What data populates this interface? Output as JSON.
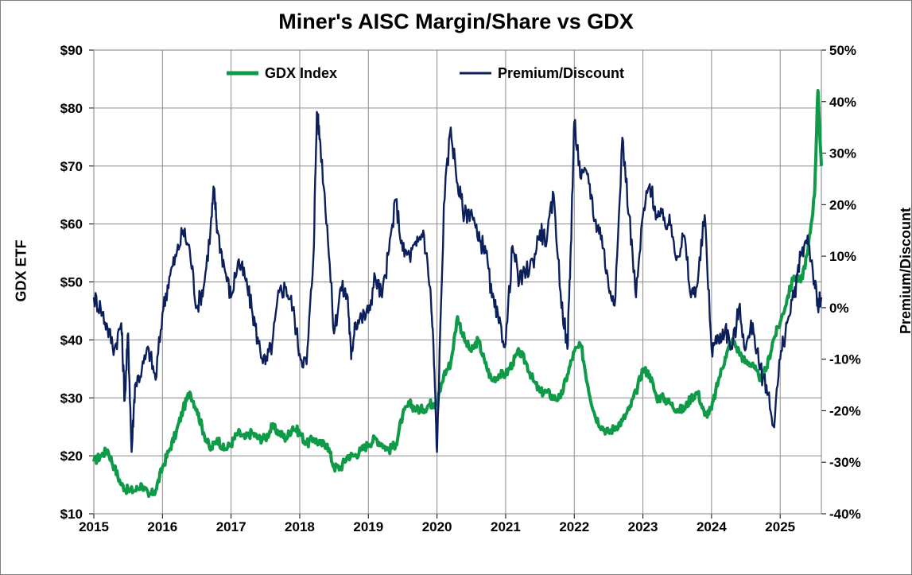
{
  "chart_data": {
    "type": "line",
    "title": "Miner's AISC Margin/Share vs GDX",
    "xlabel": "",
    "ylabel_left": "GDX ETF",
    "ylabel_right": "Premium/Discount",
    "x_ticks": [
      "2015",
      "2016",
      "2017",
      "2018",
      "2019",
      "2020",
      "2021",
      "2022",
      "2023",
      "2024",
      "2025"
    ],
    "y_left_ticks": [
      "$10",
      "$20",
      "$30",
      "$40",
      "$50",
      "$60",
      "$70",
      "$80",
      "$90"
    ],
    "y_right_ticks": [
      "-40%",
      "-30%",
      "-20%",
      "-10%",
      "0%",
      "10%",
      "20%",
      "30%",
      "40%",
      "50%"
    ],
    "xlim": [
      2015.0,
      2025.6
    ],
    "ylim_left": [
      10,
      90
    ],
    "ylim_right": [
      -40,
      50
    ],
    "grid": true,
    "legend_position": "top",
    "series": [
      {
        "name": "GDX Index",
        "axis": "left",
        "color": "#0f9a48",
        "x": [
          2015.0,
          2015.1,
          2015.2,
          2015.3,
          2015.4,
          2015.5,
          2015.6,
          2015.7,
          2015.8,
          2015.9,
          2016.0,
          2016.1,
          2016.2,
          2016.3,
          2016.4,
          2016.5,
          2016.6,
          2016.7,
          2016.8,
          2016.9,
          2017.0,
          2017.1,
          2017.2,
          2017.3,
          2017.4,
          2017.5,
          2017.6,
          2017.7,
          2017.8,
          2017.9,
          2018.0,
          2018.1,
          2018.2,
          2018.3,
          2018.4,
          2018.5,
          2018.6,
          2018.7,
          2018.8,
          2018.9,
          2019.0,
          2019.1,
          2019.2,
          2019.3,
          2019.4,
          2019.5,
          2019.6,
          2019.7,
          2019.8,
          2019.9,
          2019.95,
          2020.0,
          2020.1,
          2020.2,
          2020.3,
          2020.4,
          2020.5,
          2020.6,
          2020.7,
          2020.8,
          2020.9,
          2021.0,
          2021.1,
          2021.2,
          2021.3,
          2021.4,
          2021.5,
          2021.6,
          2021.7,
          2021.8,
          2021.9,
          2022.0,
          2022.1,
          2022.2,
          2022.3,
          2022.4,
          2022.5,
          2022.6,
          2022.7,
          2022.8,
          2022.9,
          2023.0,
          2023.1,
          2023.2,
          2023.3,
          2023.4,
          2023.5,
          2023.6,
          2023.7,
          2023.8,
          2023.9,
          2024.0,
          2024.1,
          2024.2,
          2024.3,
          2024.4,
          2024.5,
          2024.6,
          2024.7,
          2024.8,
          2024.9,
          2025.0,
          2025.1,
          2025.2,
          2025.3,
          2025.4,
          2025.5,
          2025.55,
          2025.6
        ],
        "values": [
          19,
          20,
          21,
          18,
          15,
          14,
          14,
          15,
          13,
          14,
          18,
          21,
          24,
          28,
          31,
          28,
          24,
          21,
          23,
          21,
          22,
          24,
          23,
          24,
          23,
          23,
          25,
          24,
          23,
          25,
          24,
          22,
          23,
          22,
          22,
          18,
          18,
          20,
          20,
          21,
          22,
          23,
          22,
          21,
          22,
          27,
          29,
          28,
          28,
          29,
          29,
          29,
          34,
          36,
          44,
          40,
          38,
          40,
          36,
          33,
          34,
          34,
          36,
          38,
          36,
          33,
          31,
          31,
          30,
          30,
          34,
          38,
          39,
          32,
          27,
          25,
          24,
          25,
          26,
          28,
          31,
          35,
          34,
          30,
          30,
          29,
          28,
          28,
          30,
          31,
          27,
          28,
          33,
          37,
          40,
          38,
          36,
          36,
          33,
          35,
          40,
          43,
          47,
          51,
          50,
          55,
          65,
          83,
          70
        ]
      },
      {
        "name": "Premium/Discount",
        "axis": "right",
        "color": "#0b1f5c",
        "x": [
          2015.0,
          2015.1,
          2015.2,
          2015.3,
          2015.4,
          2015.45,
          2015.5,
          2015.55,
          2015.6,
          2015.7,
          2015.8,
          2015.9,
          2016.0,
          2016.1,
          2016.2,
          2016.3,
          2016.4,
          2016.5,
          2016.6,
          2016.7,
          2016.75,
          2016.8,
          2016.9,
          2017.0,
          2017.1,
          2017.2,
          2017.3,
          2017.4,
          2017.5,
          2017.6,
          2017.7,
          2017.8,
          2017.9,
          2018.0,
          2018.1,
          2018.2,
          2018.25,
          2018.3,
          2018.4,
          2018.5,
          2018.6,
          2018.7,
          2018.75,
          2018.8,
          2018.9,
          2019.0,
          2019.1,
          2019.2,
          2019.3,
          2019.4,
          2019.5,
          2019.6,
          2019.7,
          2019.8,
          2019.9,
          2019.95,
          2020.0,
          2020.1,
          2020.2,
          2020.3,
          2020.4,
          2020.5,
          2020.6,
          2020.7,
          2020.8,
          2020.9,
          2021.0,
          2021.1,
          2021.2,
          2021.3,
          2021.4,
          2021.5,
          2021.6,
          2021.7,
          2021.8,
          2021.9,
          2021.95,
          2022.0,
          2022.1,
          2022.2,
          2022.3,
          2022.4,
          2022.5,
          2022.6,
          2022.7,
          2022.8,
          2022.9,
          2023.0,
          2023.1,
          2023.2,
          2023.3,
          2023.4,
          2023.5,
          2023.6,
          2023.7,
          2023.8,
          2023.9,
          2024.0,
          2024.1,
          2024.2,
          2024.3,
          2024.4,
          2024.5,
          2024.6,
          2024.7,
          2024.8,
          2024.9,
          2025.0,
          2025.1,
          2025.2,
          2025.3,
          2025.4,
          2025.5,
          2025.55,
          2025.6
        ],
        "values": [
          2,
          0,
          -4,
          -8,
          -3,
          -18,
          -5,
          -28,
          -15,
          -12,
          -8,
          -14,
          -1,
          6,
          10,
          15,
          11,
          0,
          4,
          15,
          23,
          15,
          8,
          2,
          9,
          6,
          0,
          -7,
          -11,
          -7,
          3,
          4,
          0,
          -9,
          -11,
          10,
          38,
          32,
          16,
          -5,
          4,
          2,
          -10,
          -3,
          -2,
          -1,
          6,
          2,
          11,
          21,
          11,
          10,
          12,
          15,
          4,
          -8,
          -28,
          20,
          35,
          24,
          18,
          19,
          13,
          12,
          2,
          -3,
          -7,
          12,
          5,
          7,
          9,
          15,
          13,
          22,
          3,
          -8,
          12,
          36,
          25,
          26,
          17,
          14,
          4,
          2,
          33,
          18,
          2,
          18,
          24,
          18,
          17,
          16,
          10,
          14,
          2,
          5,
          18,
          -8,
          -6,
          -4,
          -8,
          0,
          -8,
          -3,
          -12,
          -15,
          -23,
          -10,
          -3,
          2,
          10,
          14,
          5,
          0,
          2
        ]
      }
    ]
  }
}
